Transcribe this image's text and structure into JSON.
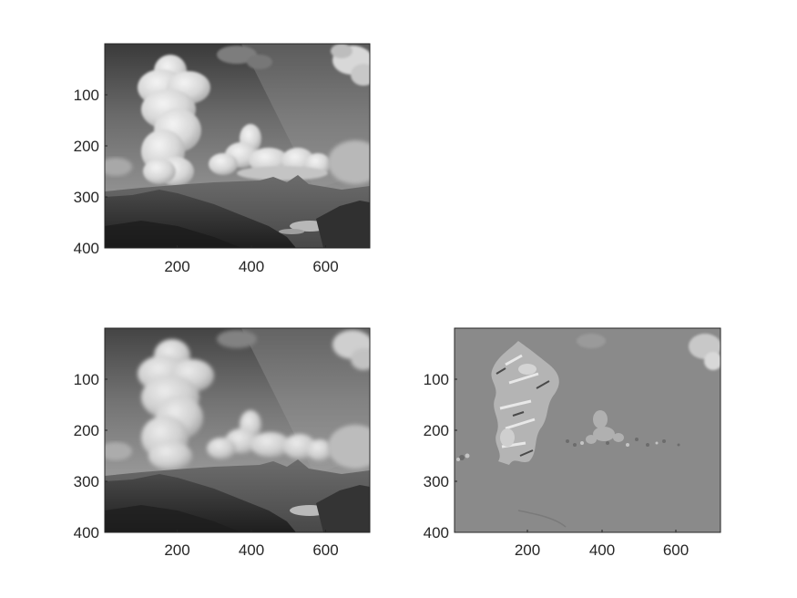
{
  "figure": {
    "panels": [
      {
        "id": "top-left",
        "image": "grayscale-landscape-original",
        "x_ticks": [
          "200",
          "400",
          "600"
        ],
        "y_ticks": [
          "100",
          "200",
          "300",
          "400"
        ]
      },
      {
        "id": "bottom-left",
        "image": "grayscale-landscape-processed",
        "x_ticks": [
          "200",
          "400",
          "600"
        ],
        "y_ticks": [
          "100",
          "200",
          "300",
          "400"
        ]
      },
      {
        "id": "bottom-right",
        "image": "difference-image",
        "x_ticks": [
          "200",
          "400",
          "600"
        ],
        "y_ticks": [
          "100",
          "200",
          "300",
          "400"
        ]
      }
    ]
  }
}
